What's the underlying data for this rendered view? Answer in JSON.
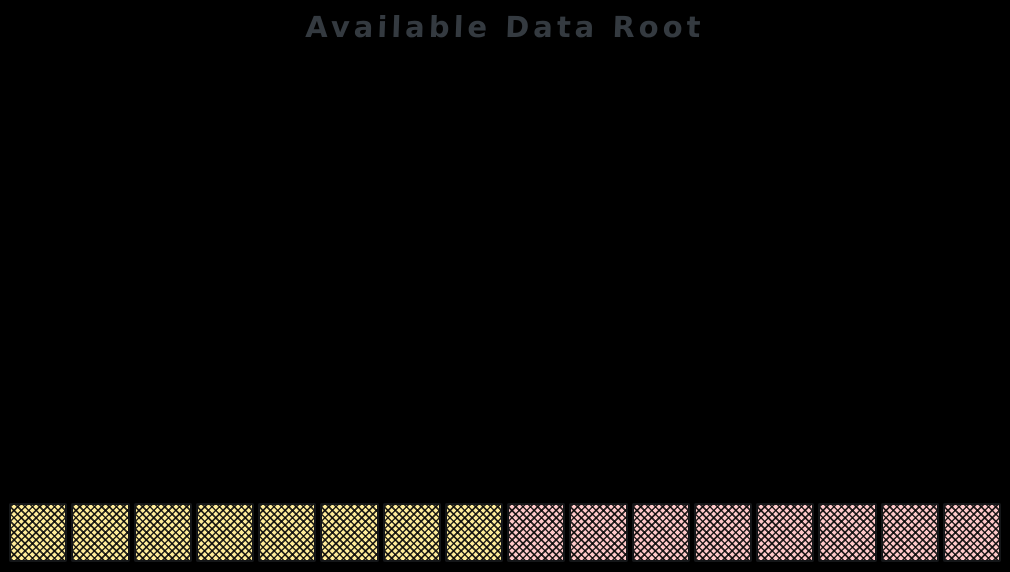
{
  "title": "Available Data Root",
  "colors": {
    "background": "#000000",
    "title_text": "#343a40",
    "block_stroke": "#141618",
    "hatch": "#080808",
    "yellow_fill": "#ffec99",
    "pink_fill": "#ffc9c9"
  },
  "blocks": [
    {
      "index": 1,
      "color": "yellow"
    },
    {
      "index": 2,
      "color": "yellow"
    },
    {
      "index": 3,
      "color": "yellow"
    },
    {
      "index": 4,
      "color": "yellow"
    },
    {
      "index": 5,
      "color": "yellow"
    },
    {
      "index": 6,
      "color": "yellow"
    },
    {
      "index": 7,
      "color": "yellow"
    },
    {
      "index": 8,
      "color": "yellow"
    },
    {
      "index": 9,
      "color": "pink"
    },
    {
      "index": 10,
      "color": "pink"
    },
    {
      "index": 11,
      "color": "pink"
    },
    {
      "index": 12,
      "color": "pink"
    },
    {
      "index": 13,
      "color": "pink"
    },
    {
      "index": 14,
      "color": "pink"
    },
    {
      "index": 15,
      "color": "pink"
    },
    {
      "index": 16,
      "color": "pink"
    }
  ],
  "block_counts": {
    "yellow": 8,
    "pink": 8
  }
}
